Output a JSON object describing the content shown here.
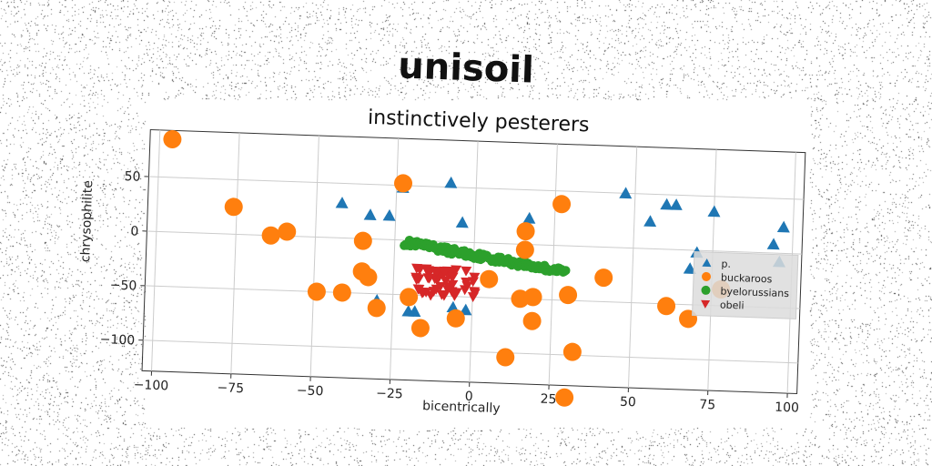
{
  "title": "unisoil",
  "colors": {
    "p": "#1f77b4",
    "buckaroos": "#ff7f0e",
    "byelorussians": "#2ca02c",
    "obeli": "#d62728"
  },
  "chart_data": {
    "type": "scatter",
    "title": "instinctively pesterers",
    "xlabel": "bicentrically",
    "ylabel": "chrysophilite",
    "xlim": [
      -103,
      103
    ],
    "ylim": [
      -128,
      93
    ],
    "xticks": [
      -100,
      -75,
      -50,
      -25,
      0,
      25,
      50,
      75,
      100
    ],
    "yticks": [
      -100,
      -50,
      0,
      50
    ],
    "grid": true,
    "legend_position": "right",
    "series": [
      {
        "name": "p.",
        "marker": "triangle-up",
        "color": "#1f77b4",
        "points": [
          [
            -42,
            32
          ],
          [
            -33,
            22
          ],
          [
            -27,
            22
          ],
          [
            -23,
            48
          ],
          [
            -8,
            54
          ],
          [
            -4,
            18
          ],
          [
            -30,
            -56
          ],
          [
            -20,
            -65
          ],
          [
            -18,
            -65
          ],
          [
            -6,
            -60
          ],
          [
            -2,
            -62
          ],
          [
            17,
            24
          ],
          [
            47,
            50
          ],
          [
            55,
            25
          ],
          [
            60,
            41
          ],
          [
            63,
            41
          ],
          [
            70,
            -2
          ],
          [
            75,
            36
          ],
          [
            68,
            -17
          ],
          [
            94,
            8
          ],
          [
            96,
            -8
          ],
          [
            97,
            24
          ]
        ]
      },
      {
        "name": "buckaroos",
        "marker": "circle",
        "color": "#ff7f0e",
        "points": [
          [
            -96,
            85
          ],
          [
            -76,
            25
          ],
          [
            -64,
            0
          ],
          [
            -59,
            4
          ],
          [
            -35,
            -2
          ],
          [
            -35,
            -30
          ],
          [
            -33,
            -35
          ],
          [
            -49,
            -50
          ],
          [
            -41,
            -50
          ],
          [
            -30,
            -63
          ],
          [
            -23,
            52
          ],
          [
            -20,
            -52
          ],
          [
            -16,
            -80
          ],
          [
            -5,
            -70
          ],
          [
            5,
            -33
          ],
          [
            11,
            -104
          ],
          [
            15,
            -50
          ],
          [
            16,
            12
          ],
          [
            16,
            -5
          ],
          [
            19,
            -48
          ],
          [
            19,
            -70
          ],
          [
            27,
            38
          ],
          [
            30,
            -45
          ],
          [
            32,
            -97
          ],
          [
            30,
            -139
          ],
          [
            41,
            -28
          ],
          [
            61,
            -52
          ],
          [
            68,
            -63
          ],
          [
            78,
            -35
          ]
        ]
      },
      {
        "name": "byelorussians",
        "marker": "circle",
        "color": "#2ca02c",
        "x_range": [
          -22,
          29
        ],
        "y_at_start": -2,
        "y_at_end": -24
      },
      {
        "name": "obeli",
        "marker": "triangle-down",
        "color": "#d62728",
        "x_range": [
          -18,
          2
        ],
        "y_range": [
          -50,
          -25
        ]
      }
    ]
  }
}
